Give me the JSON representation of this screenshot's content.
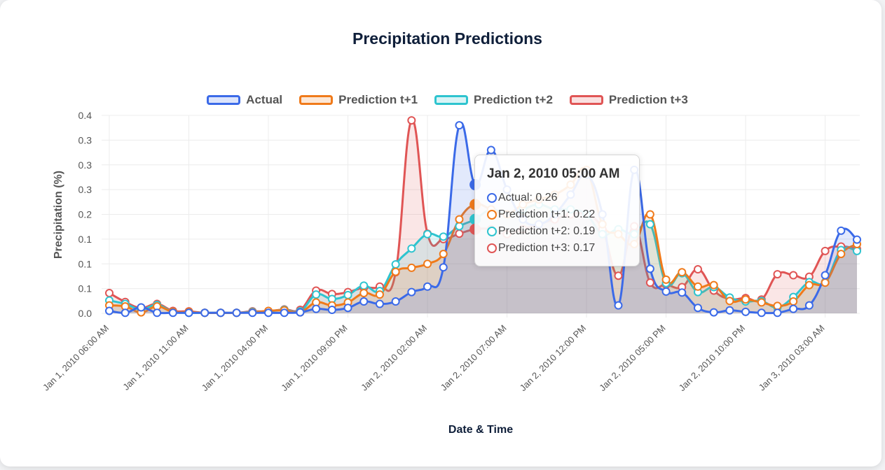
{
  "chart_data": {
    "type": "line",
    "title": "Precipitation Predictions",
    "xlabel": "Date & Time",
    "ylabel": "Precipitation (%)",
    "ylim": [
      0,
      0.4
    ],
    "grid": true,
    "legend": "top-center",
    "y_ticks": [
      "0.0",
      "0.1",
      "0.1",
      "0.1",
      "0.2",
      "0.3",
      "0.3",
      "0.3",
      "0.4"
    ],
    "x_ticks": [
      "Jan 1, 2010 06:00 AM",
      "Jan 1, 2010 11:00 AM",
      "Jan 1, 2010 04:00 PM",
      "Jan 1, 2010 09:00 PM",
      "Jan 2, 2010 02:00 AM",
      "Jan 2, 2010 07:00 AM",
      "Jan 2, 2010 12:00 PM",
      "Jan 2, 2010 05:00 PM",
      "Jan 2, 2010 10:00 PM",
      "Jan 3, 2010 03:00 AM"
    ],
    "x": [
      "Jan 1, 2010 06:00 AM",
      "Jan 1, 2010 07:00 AM",
      "Jan 1, 2010 08:00 AM",
      "Jan 1, 2010 09:00 AM",
      "Jan 1, 2010 10:00 AM",
      "Jan 1, 2010 11:00 AM",
      "Jan 1, 2010 12:00 PM",
      "Jan 1, 2010 01:00 PM",
      "Jan 1, 2010 02:00 PM",
      "Jan 1, 2010 03:00 PM",
      "Jan 1, 2010 04:00 PM",
      "Jan 1, 2010 05:00 PM",
      "Jan 1, 2010 06:00 PM",
      "Jan 1, 2010 07:00 PM",
      "Jan 1, 2010 08:00 PM",
      "Jan 1, 2010 09:00 PM",
      "Jan 1, 2010 10:00 PM",
      "Jan 1, 2010 11:00 PM",
      "Jan 2, 2010 12:00 AM",
      "Jan 2, 2010 01:00 AM",
      "Jan 2, 2010 02:00 AM",
      "Jan 2, 2010 03:00 AM",
      "Jan 2, 2010 04:00 AM",
      "Jan 2, 2010 05:00 AM",
      "Jan 2, 2010 06:00 AM",
      "Jan 2, 2010 07:00 AM",
      "Jan 2, 2010 08:00 AM",
      "Jan 2, 2010 09:00 AM",
      "Jan 2, 2010 10:00 AM",
      "Jan 2, 2010 11:00 AM",
      "Jan 2, 2010 12:00 PM",
      "Jan 2, 2010 01:00 PM",
      "Jan 2, 2010 02:00 PM",
      "Jan 2, 2010 03:00 PM",
      "Jan 2, 2010 04:00 PM",
      "Jan 2, 2010 05:00 PM",
      "Jan 2, 2010 06:00 PM",
      "Jan 2, 2010 07:00 PM",
      "Jan 2, 2010 08:00 PM",
      "Jan 2, 2010 09:00 PM",
      "Jan 2, 2010 10:00 PM",
      "Jan 2, 2010 11:00 PM",
      "Jan 3, 2010 12:00 AM",
      "Jan 3, 2010 01:00 AM",
      "Jan 3, 2010 02:00 AM",
      "Jan 3, 2010 03:00 AM",
      "Jan 3, 2010 04:00 AM",
      "Jan 3, 2010 05:00 AM"
    ],
    "series": [
      {
        "name": "Actual",
        "color": "#3b6ae8",
        "values": [
          0.005,
          0.001,
          0.012,
          0.001,
          0.001,
          0.001,
          0.001,
          0.001,
          0.001,
          0.001,
          0.001,
          0.001,
          0.002,
          0.009,
          0.007,
          0.011,
          0.024,
          0.019,
          0.024,
          0.043,
          0.054,
          0.093,
          0.38,
          0.26,
          0.33,
          0.25,
          0.19,
          0.18,
          0.2,
          0.24,
          0.28,
          0.2,
          0.016,
          0.29,
          0.09,
          0.044,
          0.042,
          0.011,
          0.002,
          0.006,
          0.003,
          0.001,
          0.001,
          0.009,
          0.016,
          0.077,
          0.167,
          0.149
        ]
      },
      {
        "name": "Prediction t+1",
        "color": "#f07a1a",
        "values": [
          0.016,
          0.014,
          0.002,
          0.014,
          0.003,
          0.003,
          0.001,
          0.001,
          0.001,
          0.002,
          0.005,
          0.006,
          0.002,
          0.022,
          0.016,
          0.022,
          0.041,
          0.038,
          0.084,
          0.092,
          0.1,
          0.12,
          0.19,
          0.22,
          0.21,
          0.2,
          0.22,
          0.23,
          0.24,
          0.26,
          0.29,
          0.18,
          0.16,
          0.14,
          0.2,
          0.068,
          0.083,
          0.054,
          0.057,
          0.025,
          0.028,
          0.022,
          0.015,
          0.024,
          0.057,
          0.062,
          0.12,
          0.14
        ]
      },
      {
        "name": "Prediction t+2",
        "color": "#2ec4cf",
        "values": [
          0.026,
          0.019,
          0.008,
          0.017,
          0.003,
          0.001,
          0.001,
          0.001,
          0.001,
          0.003,
          0.004,
          0.007,
          0.004,
          0.038,
          0.029,
          0.037,
          0.056,
          0.045,
          0.099,
          0.131,
          0.16,
          0.155,
          0.176,
          0.19,
          0.21,
          0.2,
          0.21,
          0.22,
          0.21,
          0.21,
          0.2,
          0.16,
          0.17,
          0.16,
          0.18,
          0.061,
          0.081,
          0.043,
          0.053,
          0.032,
          0.024,
          0.025,
          0.012,
          0.033,
          0.063,
          0.063,
          0.128,
          0.126
        ]
      },
      {
        "name": "Prediction t+3",
        "color": "#e05555",
        "values": [
          0.041,
          0.023,
          0.011,
          0.019,
          0.005,
          0.004,
          0.001,
          0.001,
          0.001,
          0.004,
          0.004,
          0.008,
          0.007,
          0.046,
          0.039,
          0.043,
          0.052,
          0.054,
          0.083,
          0.39,
          0.161,
          0.15,
          0.161,
          0.17,
          0.17,
          0.16,
          0.17,
          0.18,
          0.19,
          0.2,
          0.2,
          0.17,
          0.076,
          0.176,
          0.062,
          0.058,
          0.053,
          0.089,
          0.046,
          0.029,
          0.031,
          0.028,
          0.079,
          0.077,
          0.074,
          0.126,
          0.135,
          0.13
        ]
      }
    ],
    "tooltip": {
      "title": "Jan 2, 2010 05:00 AM",
      "rows": [
        "Actual: 0.26",
        "Prediction t+1: 0.22",
        "Prediction t+2: 0.19",
        "Prediction t+3: 0.17"
      ]
    }
  }
}
